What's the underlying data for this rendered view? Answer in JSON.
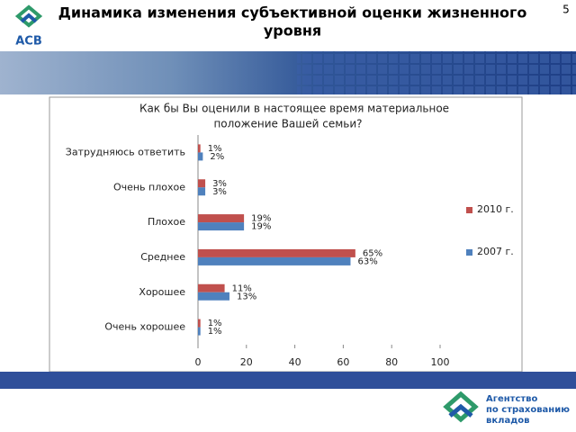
{
  "header": {
    "title_lines": [
      "Динамика изменения субъективной оценки жизненного",
      "уровня"
    ],
    "page_number": "5",
    "logo_text": "АСВ"
  },
  "footer": {
    "logo_lines": [
      "Агентство",
      "по страхованию",
      "вкладов"
    ]
  },
  "chart_data": {
    "type": "hbar",
    "title_lines": [
      "Как бы Вы оценили в настоящее время материальное",
      "положение Вашей семьи?"
    ],
    "categories": [
      "Затрудняюсь ответить",
      "Очень плохое",
      "Плохое",
      "Среднее",
      "Хорошее",
      "Очень хорошее"
    ],
    "series": [
      {
        "name": "2010 г.",
        "color": "#c0504d",
        "values": [
          1,
          3,
          19,
          65,
          11,
          1
        ],
        "value_labels": [
          "1%",
          "3%",
          "19%",
          "65%",
          "11%",
          "1%"
        ]
      },
      {
        "name": "2007 г.",
        "color": "#4f81bd",
        "values": [
          2,
          3,
          19,
          63,
          13,
          1
        ],
        "value_labels": [
          "2%",
          "3%",
          "19%",
          "63%",
          "13%",
          "1%"
        ]
      }
    ],
    "xlim": [
      0,
      100
    ],
    "xticks": [
      0,
      20,
      40,
      60,
      80,
      100
    ],
    "legend": "right"
  }
}
